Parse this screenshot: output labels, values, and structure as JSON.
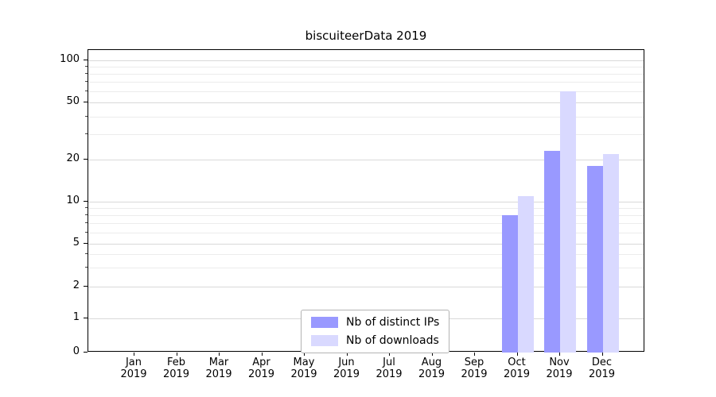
{
  "chart_data": {
    "type": "bar",
    "title": "biscuiteerData 2019",
    "categories": [
      "Jan",
      "Feb",
      "Mar",
      "Apr",
      "May",
      "Jun",
      "Jul",
      "Aug",
      "Sep",
      "Oct",
      "Nov",
      "Dec"
    ],
    "x_tick_year": "2019",
    "series": [
      {
        "name": "Nb of distinct IPs",
        "color": "#9999ff",
        "values": [
          0,
          0,
          0,
          0,
          0,
          0,
          0,
          0,
          0,
          8,
          23,
          18
        ]
      },
      {
        "name": "Nb of downloads",
        "color": "#d9d9ff",
        "values": [
          0,
          0,
          0,
          0,
          0,
          0,
          0,
          0,
          0,
          11,
          60,
          22
        ]
      }
    ],
    "y_ticks": [
      0,
      1,
      2,
      5,
      10,
      20,
      50,
      100
    ],
    "y_minor_ticks": [
      3,
      4,
      6,
      7,
      8,
      9,
      30,
      40,
      60,
      70,
      80,
      90
    ],
    "y_scale": "symlog",
    "ylim": [
      0,
      120
    ],
    "grid": true,
    "legend_position": "lower center",
    "legend_entries": [
      "Nb of distinct IPs",
      "Nb of downloads"
    ]
  }
}
